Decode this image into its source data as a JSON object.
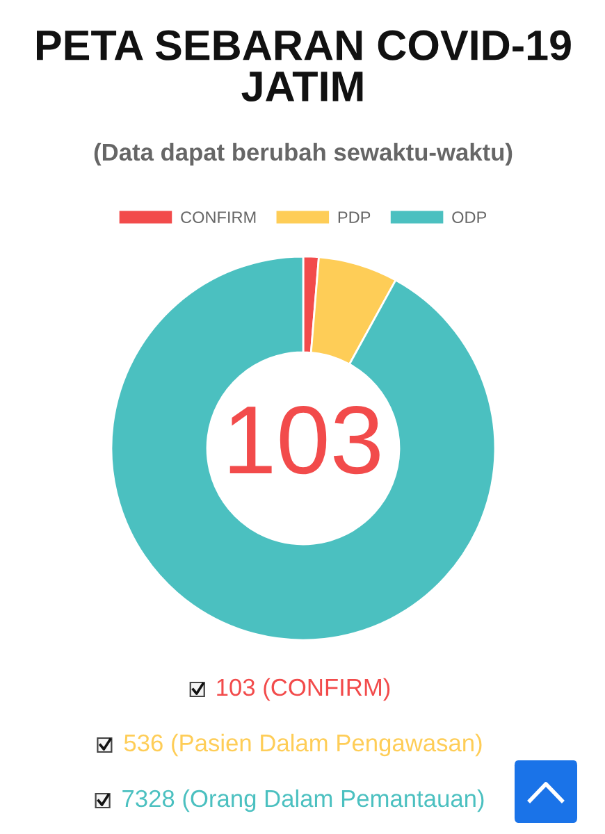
{
  "chart_data": {
    "type": "donut",
    "title": "PETA SEBARAN COVID-19\nJATIM",
    "subtitle": "(Data dapat berubah sewaktu-waktu)",
    "categories": [
      "CONFIRM",
      "PDP",
      "ODP"
    ],
    "values": [
      1.3,
      6.7,
      92.0
    ],
    "colors": [
      "#f24b4b",
      "#fecd57",
      "#4bc0c0"
    ],
    "legend": "top",
    "annotations": [
      "103",
      "103 (CONFIRM)",
      "536 (Pasien Dalam Pengawasan)",
      "7328 (Orang Dalam Pemantauan)"
    ]
  }
}
